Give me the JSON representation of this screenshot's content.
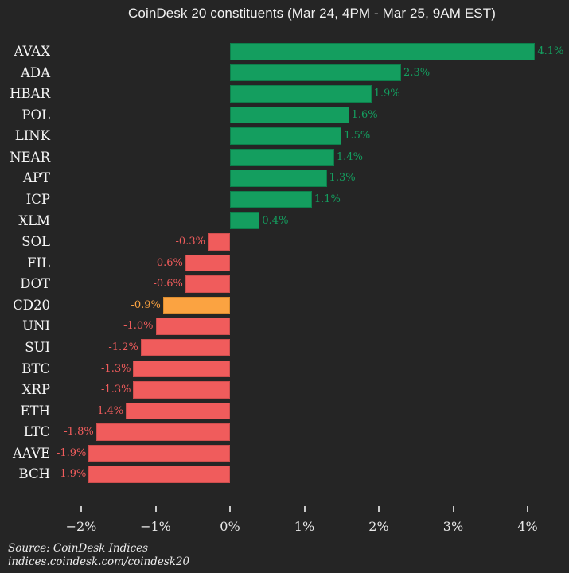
{
  "title": "CoinDesk 20 constituents (Mar 24, 4PM - Mar 25, 9AM EST)",
  "source": {
    "line1": "Source: CoinDesk Indices",
    "line2": "indices.coindesk.com/coindesk20"
  },
  "colors": {
    "background": "#252525",
    "title_text": "#f2f2f2",
    "category_text": "#f5f5f5",
    "tick_text": "#e8e8e8",
    "tick_mark": "#c9c9c9",
    "source_text": "#ededed",
    "positive": "#149e5f",
    "positive_edge": "#0d7f4b",
    "negative": "#f05c5c",
    "negative_edge": "#d04e4e",
    "index": "#fba341",
    "index_edge": "#dd8d2f"
  },
  "chart_data": {
    "type": "bar",
    "orientation": "horizontal",
    "title": "CoinDesk 20 constituents (Mar 24, 4PM - Mar 25, 9AM EST)",
    "categories": [
      "AVAX",
      "ADA",
      "HBAR",
      "POL",
      "LINK",
      "NEAR",
      "APT",
      "ICP",
      "XLM",
      "SOL",
      "FIL",
      "DOT",
      "CD20",
      "UNI",
      "SUI",
      "BTC",
      "XRP",
      "ETH",
      "LTC",
      "AAVE",
      "BCH"
    ],
    "values": [
      4.1,
      2.3,
      1.9,
      1.6,
      1.5,
      1.4,
      1.3,
      1.1,
      0.4,
      -0.3,
      -0.6,
      -0.6,
      -0.9,
      -1.0,
      -1.2,
      -1.3,
      -1.3,
      -1.4,
      -1.8,
      -1.9,
      -1.9
    ],
    "value_labels": [
      "4.1%",
      "2.3%",
      "1.9%",
      "1.6%",
      "1.5%",
      "1.4%",
      "1.3%",
      "1.1%",
      "0.4%",
      "-0.3%",
      "-0.6%",
      "-0.6%",
      "-0.9%",
      "-1.0%",
      "-1.2%",
      "-1.3%",
      "-1.3%",
      "-1.4%",
      "-1.8%",
      "-1.9%",
      "-1.9%"
    ],
    "series_colors": [
      "positive",
      "positive",
      "positive",
      "positive",
      "positive",
      "positive",
      "positive",
      "positive",
      "positive",
      "negative",
      "negative",
      "negative",
      "index",
      "negative",
      "negative",
      "negative",
      "negative",
      "negative",
      "negative",
      "negative",
      "negative"
    ],
    "x_ticks": [
      {
        "value": -2,
        "label": "−2%"
      },
      {
        "value": -1,
        "label": "−1%"
      },
      {
        "value": 0,
        "label": "0%"
      },
      {
        "value": 1,
        "label": "1%"
      },
      {
        "value": 2,
        "label": "2%"
      },
      {
        "value": 3,
        "label": "3%"
      },
      {
        "value": 4,
        "label": "4%"
      }
    ],
    "xlim": [
      -2.39,
      4.46
    ],
    "xlabel": "",
    "ylabel": "",
    "grid": false,
    "legend": false
  }
}
